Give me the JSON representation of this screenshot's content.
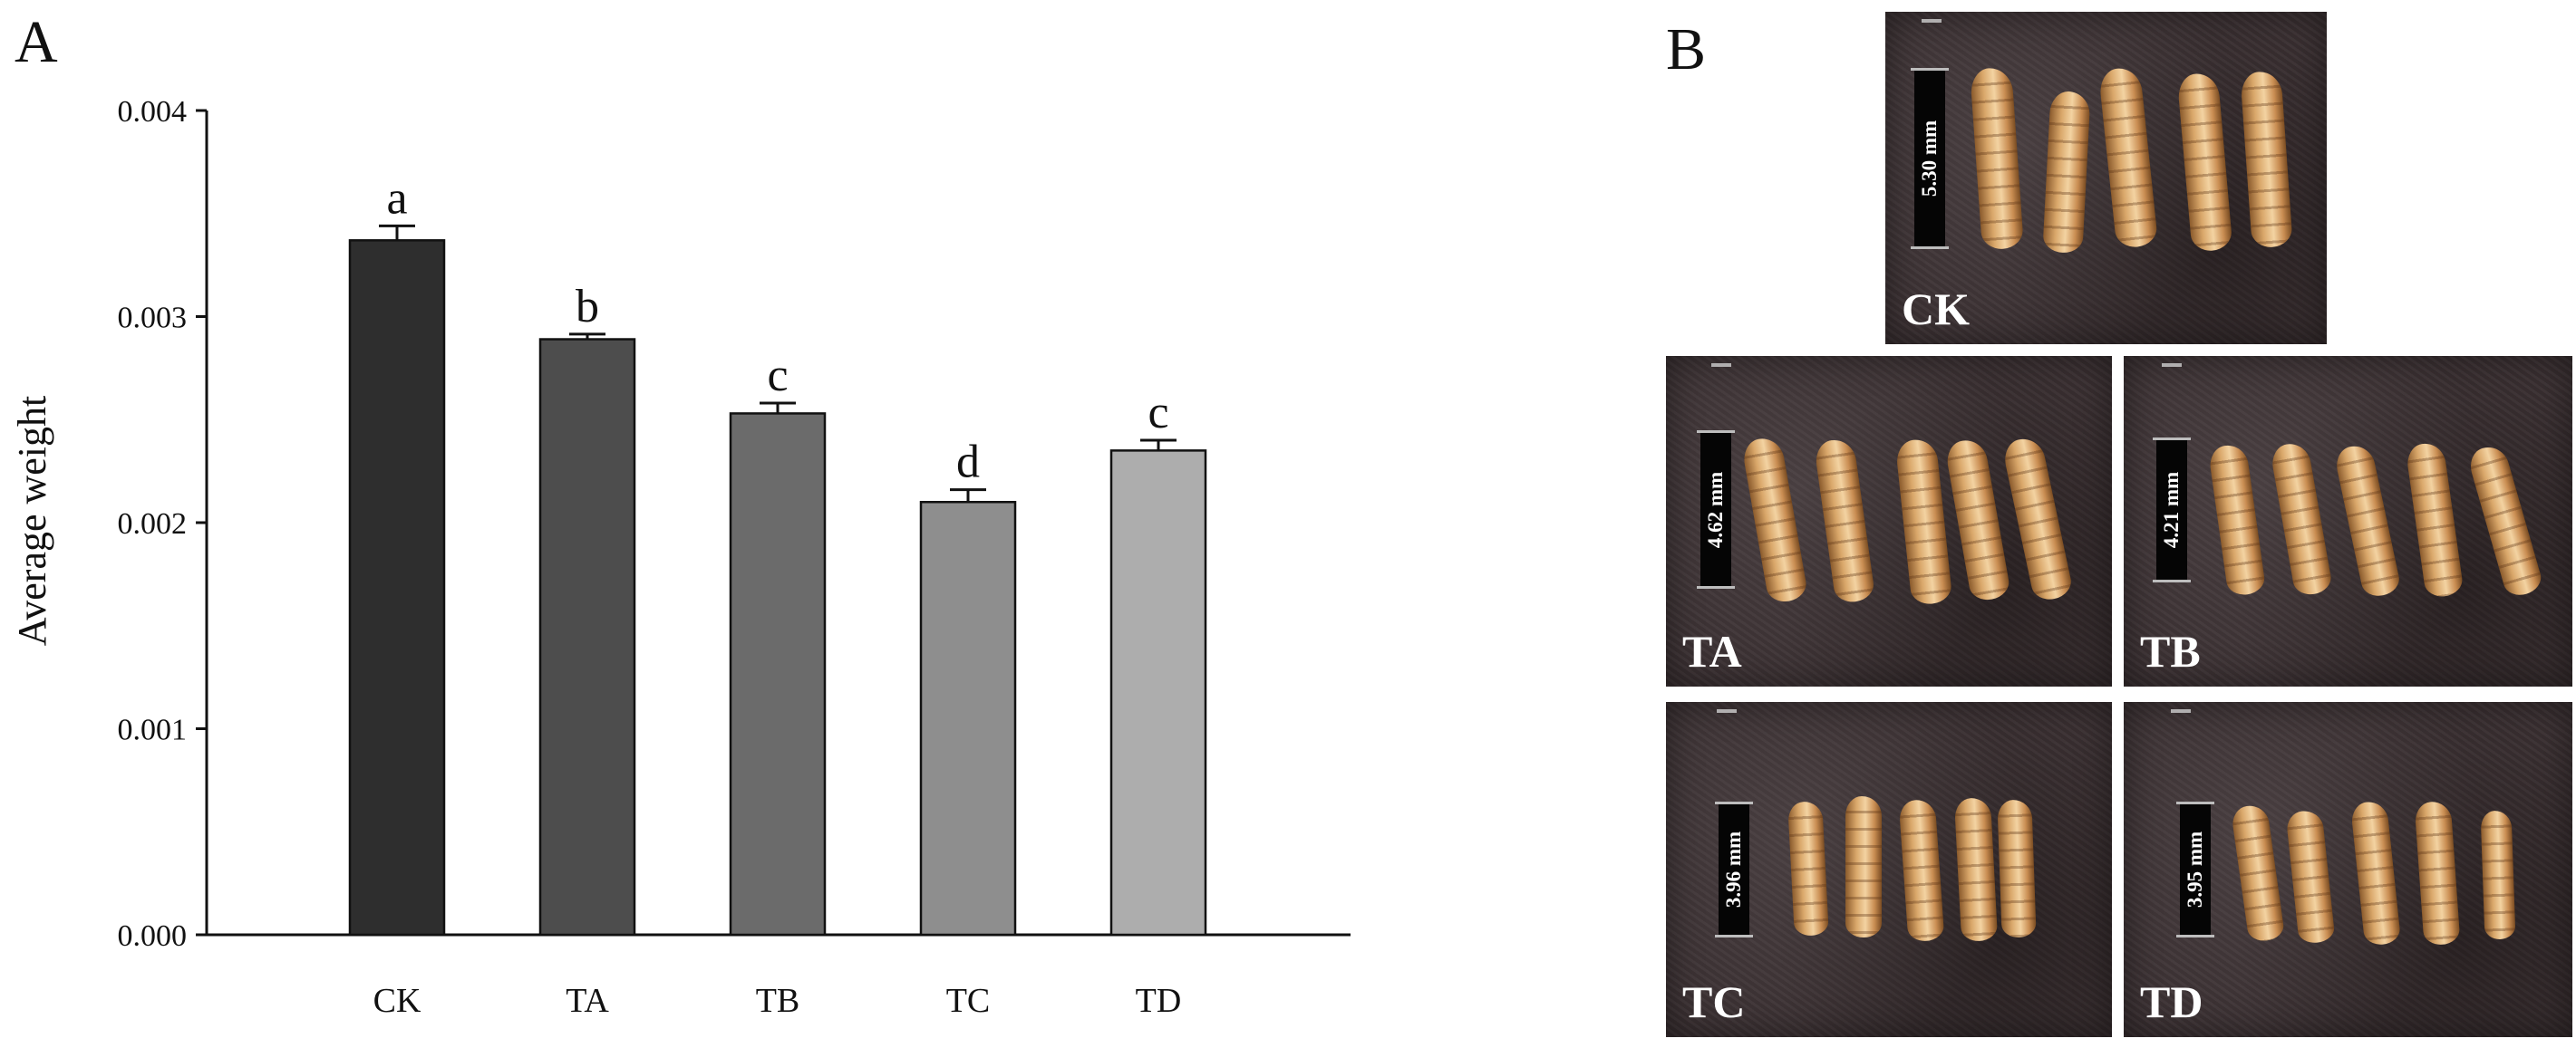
{
  "panels": {
    "a_label": "A",
    "b_label": "B"
  },
  "chart_data": {
    "type": "bar",
    "title": "",
    "xlabel": "",
    "ylabel": "Average weight",
    "categories": [
      "CK",
      "TA",
      "TB",
      "TC",
      "TD"
    ],
    "values": [
      0.00337,
      0.00289,
      0.00253,
      0.0021,
      0.00235
    ],
    "errors": [
      7e-05,
      2.5e-05,
      5e-05,
      6e-05,
      5e-05
    ],
    "significance_letters": [
      "a",
      "b",
      "c",
      "d",
      "c"
    ],
    "ylim": [
      0,
      0.004
    ],
    "yticks": [
      "0.000",
      "0.001",
      "0.002",
      "0.003",
      "0.004"
    ],
    "grid": false,
    "bar_colors": [
      "#2e2e2e",
      "#4d4d4d",
      "#6b6b6b",
      "#8e8e8e",
      "#adadad"
    ]
  },
  "photos": [
    {
      "label": "CK",
      "scale": "5.30 mm"
    },
    {
      "label": "TA",
      "scale": "4.62 mm"
    },
    {
      "label": "TB",
      "scale": "4.21 mm"
    },
    {
      "label": "TC",
      "scale": "3.96 mm"
    },
    {
      "label": "TD",
      "scale": "3.95 mm"
    }
  ]
}
